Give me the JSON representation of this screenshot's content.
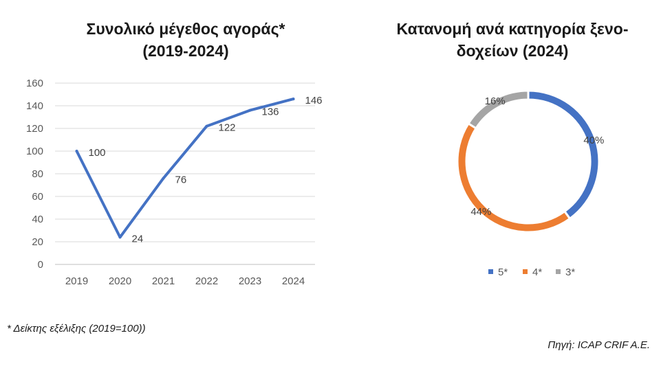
{
  "chart_data": [
    {
      "type": "line",
      "title_line1": "Συνολικό μέγεθος αγοράς*",
      "title_line2": "(2019-2024)",
      "categories": [
        "2019",
        "2020",
        "2021",
        "2022",
        "2023",
        "2024"
      ],
      "series": [
        {
          "values": [
            100,
            24,
            76,
            122,
            136,
            146
          ],
          "color": "#4472C4"
        }
      ],
      "data_labels": [
        "100",
        "24",
        "76",
        "122",
        "136",
        "146"
      ],
      "ylim": [
        0,
        160
      ],
      "yticks": [
        0,
        20,
        40,
        60,
        80,
        100,
        120,
        140,
        160
      ],
      "grid": true,
      "xlabel": "",
      "ylabel": ""
    },
    {
      "type": "pie",
      "style": "donut",
      "title_line1": "Κατανομή ανά κατηγορία ξενο-",
      "title_line2": "δοχείων (2024)",
      "categories": [
        "5*",
        "4*",
        "3*"
      ],
      "values": [
        40,
        44,
        16
      ],
      "labels": [
        "40%",
        "44%",
        "16%"
      ],
      "colors": [
        "#4472C4",
        "#ED7D31",
        "#A5A5A5"
      ],
      "legend": "bottom"
    }
  ],
  "footnote": "* Δείκτης εξέλιξης (2019=100))",
  "source": "Πηγή:  ICAP CRIF A.E."
}
